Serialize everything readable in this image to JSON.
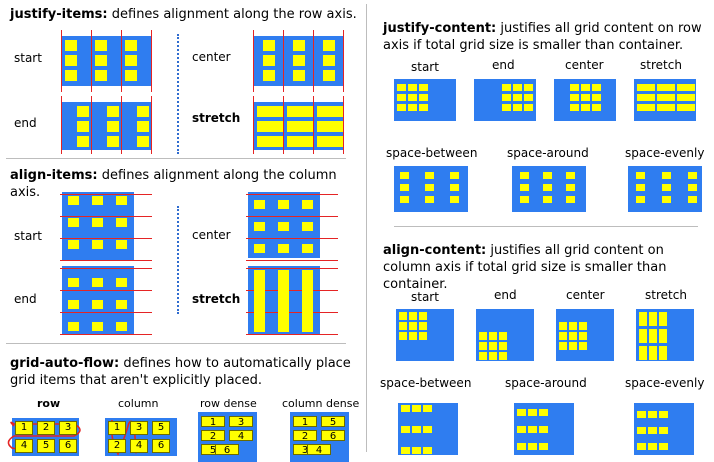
{
  "justify_items": {
    "heading_bold": "justify-items:",
    "heading_text": " defines alignment along the row axis.",
    "labels": {
      "start": "start",
      "center": "center",
      "end": "end",
      "stretch": "stretch"
    }
  },
  "align_items": {
    "heading_bold": "align-items:",
    "heading_text": " defines alignment along the column axis.",
    "labels": {
      "start": "start",
      "center": "center",
      "end": "end",
      "stretch": "stretch"
    }
  },
  "grid_auto_flow": {
    "heading_bold": "grid-auto-flow:",
    "heading_text": " defines how to automatically place grid items that aren't explicitly placed.",
    "labels": {
      "row": "row",
      "column": "column",
      "row_dense": "row dense",
      "column_dense": "column dense"
    },
    "row_items": [
      "1",
      "2",
      "3",
      "4",
      "5",
      "6"
    ],
    "column_items": [
      "1",
      "2",
      "3",
      "4",
      "5",
      "6"
    ],
    "row_dense_items": [
      "1",
      "3",
      "2",
      "4",
      "5",
      "6"
    ],
    "column_dense_items": [
      "1",
      "5",
      "2",
      "6",
      "3",
      "4"
    ]
  },
  "justify_content": {
    "heading_bold": "justify-content:",
    "heading_text": " justifies all grid content on row axis if total grid size is smaller than container.",
    "labels": [
      "start",
      "end",
      "center",
      "stretch",
      "space-between",
      "space-around",
      "space-evenly"
    ]
  },
  "align_content": {
    "heading_bold": "align-content:",
    "heading_text": " justifies all grid content on column axis if total grid size is smaller than container.",
    "labels": [
      "start",
      "end",
      "center",
      "stretch",
      "space-between",
      "space-around",
      "space-evenly"
    ]
  },
  "colors": {
    "container": "#2f7df0",
    "item": "#ffff00",
    "guide": "#e52424",
    "dots": "#2f6cd0"
  }
}
